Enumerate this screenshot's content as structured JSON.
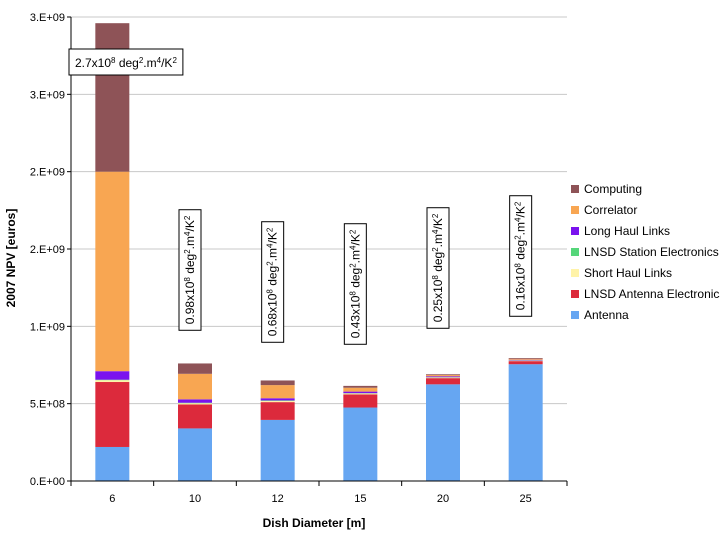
{
  "chart_data": {
    "type": "bar",
    "stacked": true,
    "title": "",
    "xlabel": "Dish Diameter [m]",
    "ylabel": "2007 NPV [euros]",
    "categories": [
      "6",
      "10",
      "12",
      "15",
      "20",
      "25"
    ],
    "ylim": [
      0,
      3000000000
    ],
    "ytick_values": [
      0,
      500000000,
      1000000000,
      1500000000,
      2000000000,
      2500000000,
      3000000000
    ],
    "ytick_labels": [
      "0.E+00",
      "5.E+08",
      "1.E+09",
      "2.E+09",
      "2.E+09",
      "3.E+09",
      "3.E+09"
    ],
    "grid": true,
    "legend_position": "right",
    "series": [
      {
        "name": "Antenna",
        "color": "#66a6f2",
        "values": [
          220000000,
          340000000,
          395000000,
          475000000,
          625000000,
          755000000
        ]
      },
      {
        "name": "LNSD Antenna Electronics",
        "color": "#dc2a3c",
        "values": [
          420000000,
          155000000,
          115000000,
          85000000,
          40000000,
          20000000
        ]
      },
      {
        "name": "Short Haul Links",
        "color": "#fff3a8",
        "values": [
          12000000,
          8000000,
          8000000,
          6000000,
          4000000,
          3000000
        ]
      },
      {
        "name": "LNSD Station Electronics",
        "color": "#55d67a",
        "values": [
          3000000,
          3000000,
          3000000,
          2000000,
          2000000,
          2000000
        ]
      },
      {
        "name": "Long Haul Links",
        "color": "#7a12ee",
        "values": [
          55000000,
          22000000,
          14000000,
          10000000,
          6000000,
          4000000
        ]
      },
      {
        "name": "Correlator",
        "color": "#f8a652",
        "values": [
          1290000000,
          165000000,
          85000000,
          25000000,
          8000000,
          6000000
        ]
      },
      {
        "name": "Computing",
        "color": "#8e5357",
        "values": [
          960000000,
          67000000,
          30000000,
          12000000,
          5000000,
          5000000
        ]
      }
    ],
    "annotations": [
      {
        "category": "6",
        "orientation": "horizontal",
        "mantissa": "2.7x10",
        "exp": "8",
        "unit": " deg",
        "unit_exp": "2",
        "unit2": ".m",
        "unit2_exp": "4",
        "tail": "/K",
        "tail_exp": "2"
      },
      {
        "category": "10",
        "orientation": "vertical",
        "mantissa": "0.98x10",
        "exp": "8",
        "unit": " deg",
        "unit_exp": "2",
        "unit2": ".m",
        "unit2_exp": "4",
        "tail": "/K",
        "tail_exp": "2"
      },
      {
        "category": "12",
        "orientation": "vertical",
        "mantissa": "0.68x10",
        "exp": "8",
        "unit": " deg",
        "unit_exp": "2",
        "unit2": ".m",
        "unit2_exp": "4",
        "tail": "/K",
        "tail_exp": "2"
      },
      {
        "category": "15",
        "orientation": "vertical",
        "mantissa": "0.43x10",
        "exp": "8",
        "unit": " deg",
        "unit_exp": "2",
        "unit2": ".m",
        "unit2_exp": "4",
        "tail": "/K",
        "tail_exp": "2"
      },
      {
        "category": "20",
        "orientation": "vertical",
        "mantissa": "0.25x10",
        "exp": "8",
        "unit": " deg",
        "unit_exp": "2",
        "unit2": ".m",
        "unit2_exp": "4",
        "tail": "/K",
        "tail_exp": "2"
      },
      {
        "category": "25",
        "orientation": "vertical",
        "mantissa": "0.16x10",
        "exp": "8",
        "unit": " deg",
        "unit_exp": "2",
        "unit2": ".m",
        "unit2_exp": "4",
        "tail": "/K",
        "tail_exp": "2"
      }
    ]
  },
  "legend": {
    "items": [
      {
        "label": "Computing",
        "color": "#8e5357"
      },
      {
        "label": "Correlator",
        "color": "#f8a652"
      },
      {
        "label": "Long Haul Links",
        "color": "#7a12ee"
      },
      {
        "label": "LNSD Station Electronics",
        "color": "#55d67a"
      },
      {
        "label": "Short Haul Links",
        "color": "#fff3a8"
      },
      {
        "label": "LNSD Antenna Electronics",
        "color": "#dc2a3c"
      },
      {
        "label": "Antenna",
        "color": "#66a6f2"
      }
    ]
  }
}
